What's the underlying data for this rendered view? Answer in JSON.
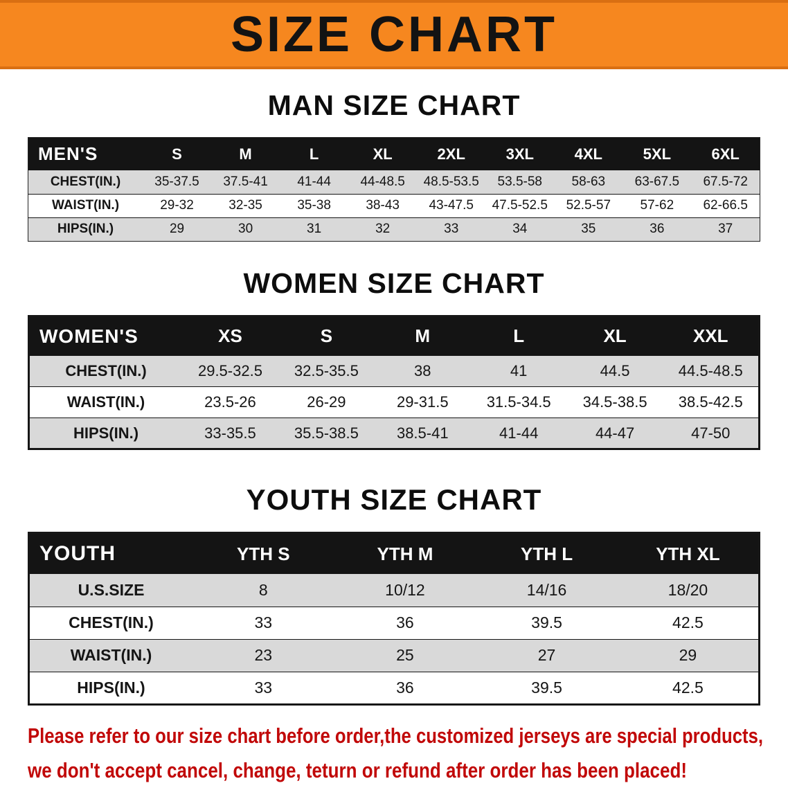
{
  "banner": {
    "title": "SIZE CHART"
  },
  "sections": [
    {
      "heading": "MAN SIZE CHART",
      "table": {
        "columns": [
          "MEN'S",
          "S",
          "M",
          "L",
          "XL",
          "2XL",
          "3XL",
          "4XL",
          "5XL",
          "6XL"
        ],
        "rows": [
          {
            "label": "CHEST(IN.)",
            "values": [
              "35-37.5",
              "37.5-41",
              "41-44",
              "44-48.5",
              "48.5-53.5",
              "53.5-58",
              "58-63",
              "63-67.5",
              "67.5-72"
            ]
          },
          {
            "label": "WAIST(IN.)",
            "values": [
              "29-32",
              "32-35",
              "35-38",
              "38-43",
              "43-47.5",
              "47.5-52.5",
              "52.5-57",
              "57-62",
              "62-66.5"
            ]
          },
          {
            "label": "HIPS(IN.)",
            "values": [
              "29",
              "30",
              "31",
              "32",
              "33",
              "34",
              "35",
              "36",
              "37"
            ]
          }
        ]
      }
    },
    {
      "heading": "WOMEN SIZE CHART",
      "table": {
        "columns": [
          "WOMEN'S",
          "XS",
          "S",
          "M",
          "L",
          "XL",
          "XXL"
        ],
        "rows": [
          {
            "label": "CHEST(IN.)",
            "values": [
              "29.5-32.5",
              "32.5-35.5",
              "38",
              "41",
              "44.5",
              "44.5-48.5"
            ]
          },
          {
            "label": "WAIST(IN.)",
            "values": [
              "23.5-26",
              "26-29",
              "29-31.5",
              "31.5-34.5",
              "34.5-38.5",
              "38.5-42.5"
            ]
          },
          {
            "label": "HIPS(IN.)",
            "values": [
              "33-35.5",
              "35.5-38.5",
              "38.5-41",
              "41-44",
              "44-47",
              "47-50"
            ]
          }
        ]
      }
    },
    {
      "heading": "YOUTH SIZE CHART",
      "table": {
        "columns": [
          "YOUTH",
          "YTH S",
          "YTH M",
          "YTH L",
          "YTH XL"
        ],
        "rows": [
          {
            "label": "U.S.SIZE",
            "values": [
              "8",
              "10/12",
              "14/16",
              "18/20"
            ]
          },
          {
            "label": "CHEST(IN.)",
            "values": [
              "33",
              "36",
              "39.5",
              "42.5"
            ]
          },
          {
            "label": "WAIST(IN.)",
            "values": [
              "23",
              "25",
              "27",
              "29"
            ]
          },
          {
            "label": "HIPS(IN.)",
            "values": [
              "33",
              "36",
              "39.5",
              "42.5"
            ]
          }
        ]
      }
    }
  ],
  "footer": {
    "line1": "Please refer to our size chart before order,the customized jerseys are special products,",
    "line2": "we don't accept cancel, change, teturn or refund after order has been placed!"
  },
  "colors": {
    "banner_bg": "#F6871F",
    "table_header_bg": "#141414",
    "row_stripe": "#D9D9D9",
    "disclaimer_red": "#C10808"
  }
}
